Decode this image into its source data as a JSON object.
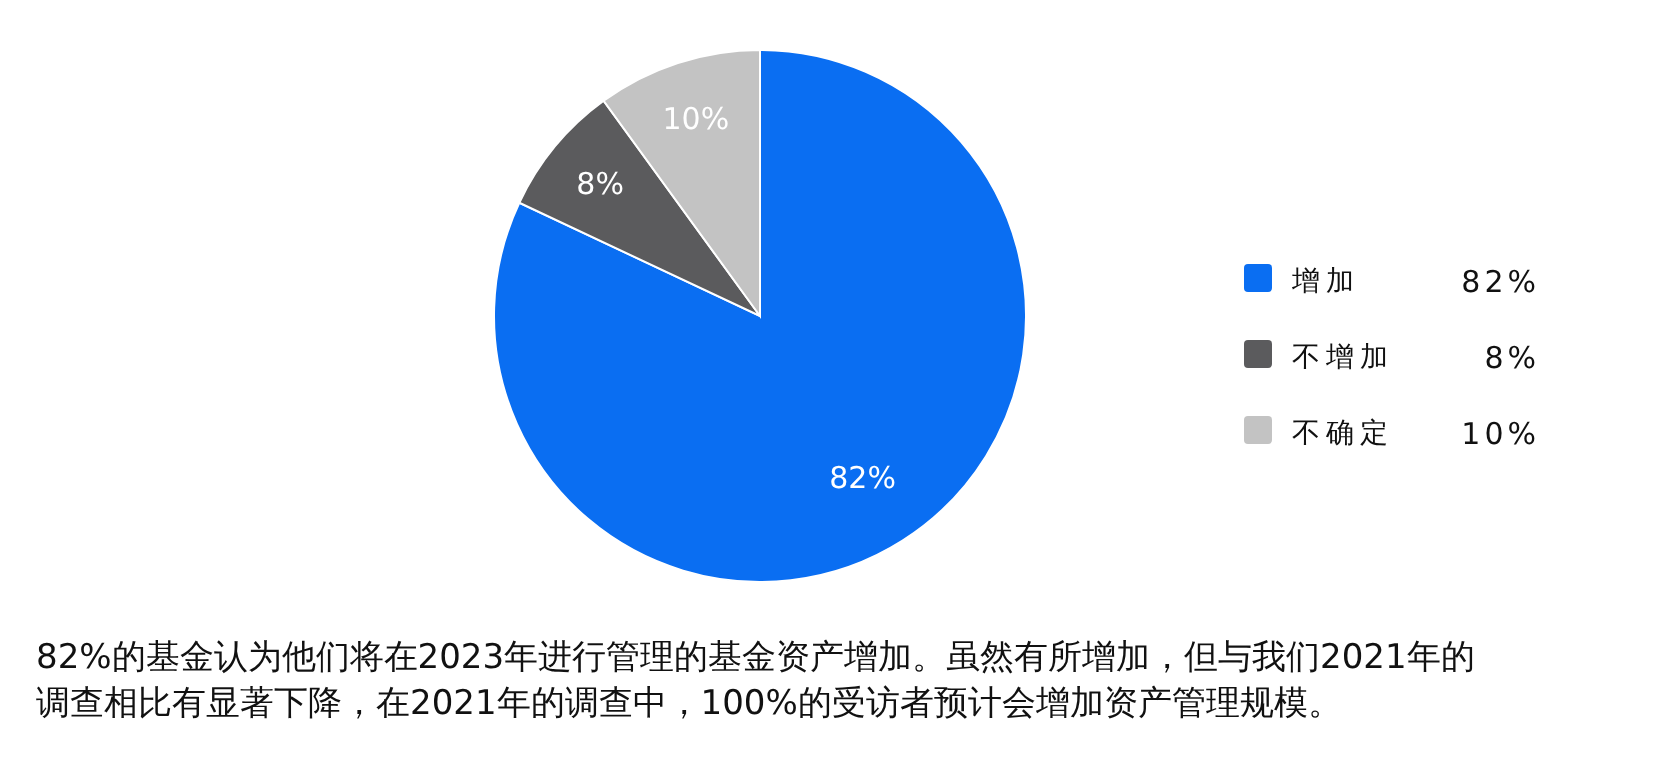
{
  "chart_data": {
    "type": "pie",
    "categories": [
      "增加",
      "不增加",
      "不确定"
    ],
    "values": [
      82,
      8,
      10
    ],
    "colors": [
      "#0a6ef2",
      "#5b5b5d",
      "#c3c3c3"
    ],
    "value_labels": [
      "82%",
      "8%",
      "10%"
    ],
    "legend": "right",
    "annotations": [
      "82%的基金认为他们将在2023年进行管理的基金资产增加。虽然有所增加，但与我们2021年的调查相比有显著下降，在2021年的调查中，100%的受访者预计会增加资产管理规模。"
    ]
  }
}
